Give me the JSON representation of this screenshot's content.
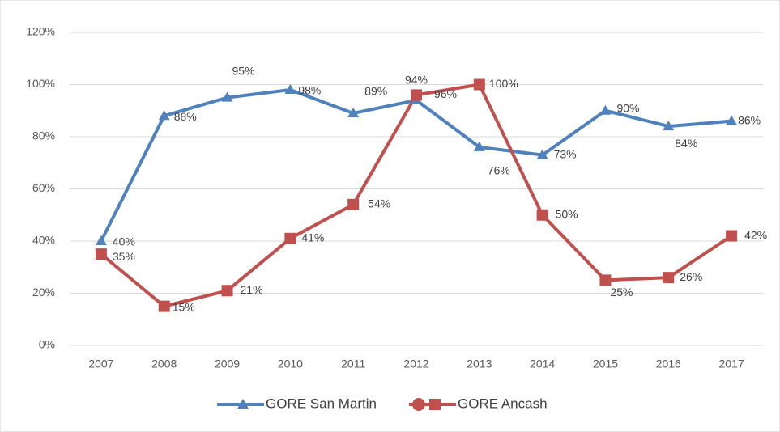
{
  "chart_data": {
    "type": "line",
    "categories": [
      "2007",
      "2008",
      "2009",
      "2010",
      "2011",
      "2012",
      "2013",
      "2014",
      "2015",
      "2016",
      "2017"
    ],
    "series": [
      {
        "name": "GORE San Martin",
        "color": "#4f81bd",
        "marker": "triangle",
        "values": [
          40,
          88,
          95,
          98,
          89,
          94,
          76,
          73,
          90,
          84,
          86
        ],
        "value_labels": [
          "40%",
          "88%",
          "95%",
          "98%",
          "89%",
          "94%",
          "76%",
          "73%",
          "90%",
          "84%",
          "86%"
        ]
      },
      {
        "name": "GORE Ancash",
        "color": "#c0504d",
        "marker": "square",
        "values": [
          35,
          15,
          21,
          41,
          54,
          96,
          100,
          50,
          25,
          26,
          42
        ],
        "value_labels": [
          "35%",
          "15%",
          "21%",
          "41%",
          "54%",
          "96%",
          "100%",
          "50%",
          "25%",
          "26%",
          "42%"
        ]
      }
    ],
    "ylim": [
      0,
      120
    ],
    "yticks": [
      {
        "value": 0,
        "label": "0%"
      },
      {
        "value": 20,
        "label": "20%"
      },
      {
        "value": 40,
        "label": "40%"
      },
      {
        "value": 60,
        "label": "60%"
      },
      {
        "value": 80,
        "label": "80%"
      },
      {
        "value": 100,
        "label": "100%"
      },
      {
        "value": 120,
        "label": "120%"
      }
    ],
    "grid": true,
    "legend": "bottom"
  }
}
